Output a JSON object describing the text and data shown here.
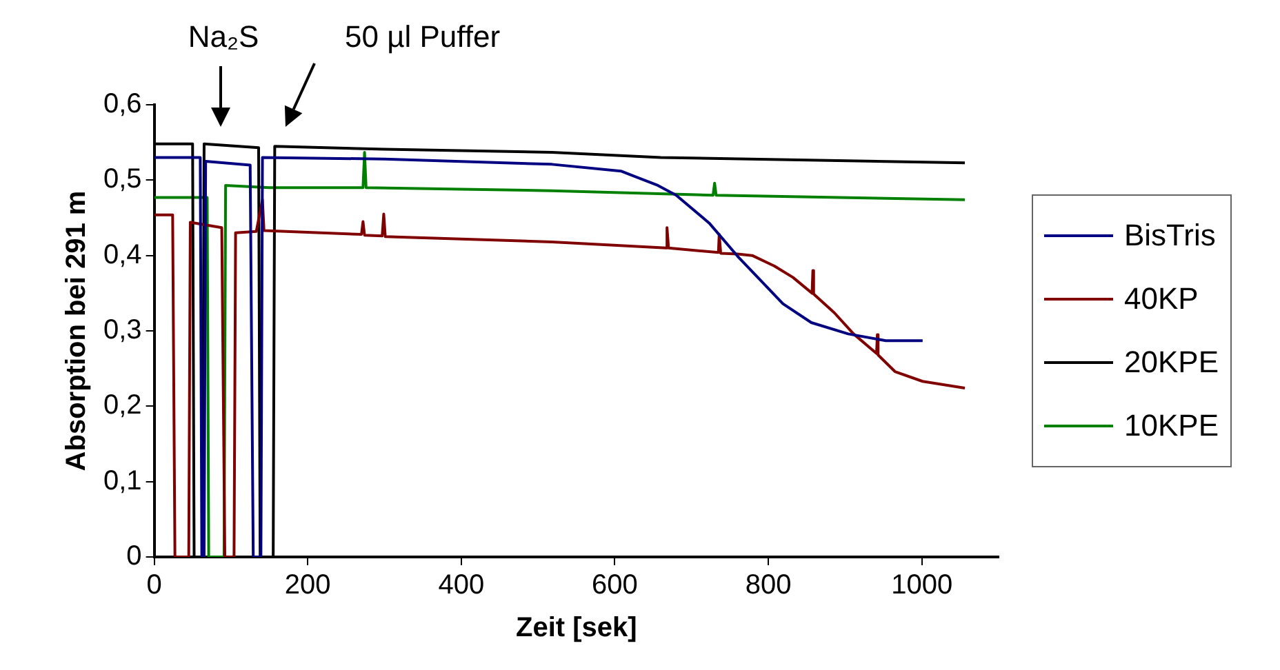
{
  "chart_data": {
    "type": "line",
    "xlabel": "Zeit [sek]",
    "ylabel": "Absorption bei 291 m",
    "xlim": [
      0,
      1100
    ],
    "xticks": [
      0,
      200,
      400,
      600,
      800,
      1000
    ],
    "ylim": [
      0,
      0.6
    ],
    "yticks": [
      0,
      {
        "value": 0.1,
        "label": "0,1"
      },
      {
        "value": 0.2,
        "label": "0,2"
      },
      {
        "value": 0.3,
        "label": "0,3"
      },
      {
        "value": 0.4,
        "label": "0,4"
      },
      {
        "value": 0.5,
        "label": "0,5"
      },
      {
        "value": 0.6,
        "label": "0,6"
      }
    ],
    "grid": false,
    "legend": "right",
    "marker": "none",
    "line_style": "solid",
    "annotations": [
      "Na₂S",
      "50 µl Puffer"
    ],
    "series": [
      {
        "name": "BisTris",
        "color": "#000080",
        "x": [
          0,
          60,
          62,
          65,
          67,
          125,
          129,
          139,
          141,
          300,
          518,
          608,
          656,
          680,
          723,
          760,
          789,
          819,
          856,
          904,
          953,
          1001
        ],
        "values": [
          0.53,
          0.53,
          0,
          0,
          0.525,
          0.52,
          0,
          0,
          0.53,
          0.528,
          0.521,
          0.512,
          0.493,
          0.48,
          0.443,
          0.399,
          0.368,
          0.336,
          0.311,
          0.296,
          0.287,
          0.287
        ]
      },
      {
        "name": "40KP",
        "color": "#800000",
        "x": [
          0,
          24,
          27,
          45,
          47,
          88,
          92,
          104,
          106,
          133,
          141,
          143,
          270,
          272,
          274,
          297,
          299,
          301,
          336,
          518,
          650,
          667,
          668,
          670,
          735,
          736,
          738,
          760,
          779,
          808,
          832,
          857,
          858,
          859,
          886,
          911,
          941,
          942,
          943,
          965,
          1001,
          1056
        ],
        "values": [
          0.454,
          0.454,
          0,
          0,
          0.444,
          0.437,
          0,
          0,
          0.43,
          0.432,
          0.474,
          0.433,
          0.428,
          0.445,
          0.427,
          0.426,
          0.455,
          0.425,
          0.424,
          0.418,
          0.411,
          0.41,
          0.437,
          0.41,
          0.404,
          0.428,
          0.403,
          0.402,
          0.4,
          0.386,
          0.371,
          0.35,
          0.38,
          0.349,
          0.324,
          0.296,
          0.27,
          0.295,
          0.268,
          0.246,
          0.233,
          0.224
        ]
      },
      {
        "name": "20KPE",
        "color": "#000000",
        "x": [
          0,
          50,
          52,
          63,
          65,
          136,
          138,
          155,
          157,
          300,
          518,
          660,
          1056
        ],
        "values": [
          0.548,
          0.548,
          0,
          0,
          0.548,
          0.543,
          0,
          0,
          0.545,
          0.541,
          0.537,
          0.53,
          0.523
        ]
      },
      {
        "name": "10KPE",
        "color": "#008000",
        "x": [
          0,
          69,
          71,
          91,
          93,
          150,
          272,
          274,
          276,
          400,
          518,
          728,
          730,
          732,
          1056
        ],
        "values": [
          0.477,
          0.477,
          0,
          0,
          0.493,
          0.49,
          0.49,
          0.537,
          0.49,
          0.488,
          0.486,
          0.48,
          0.496,
          0.48,
          0.474
        ]
      }
    ]
  }
}
